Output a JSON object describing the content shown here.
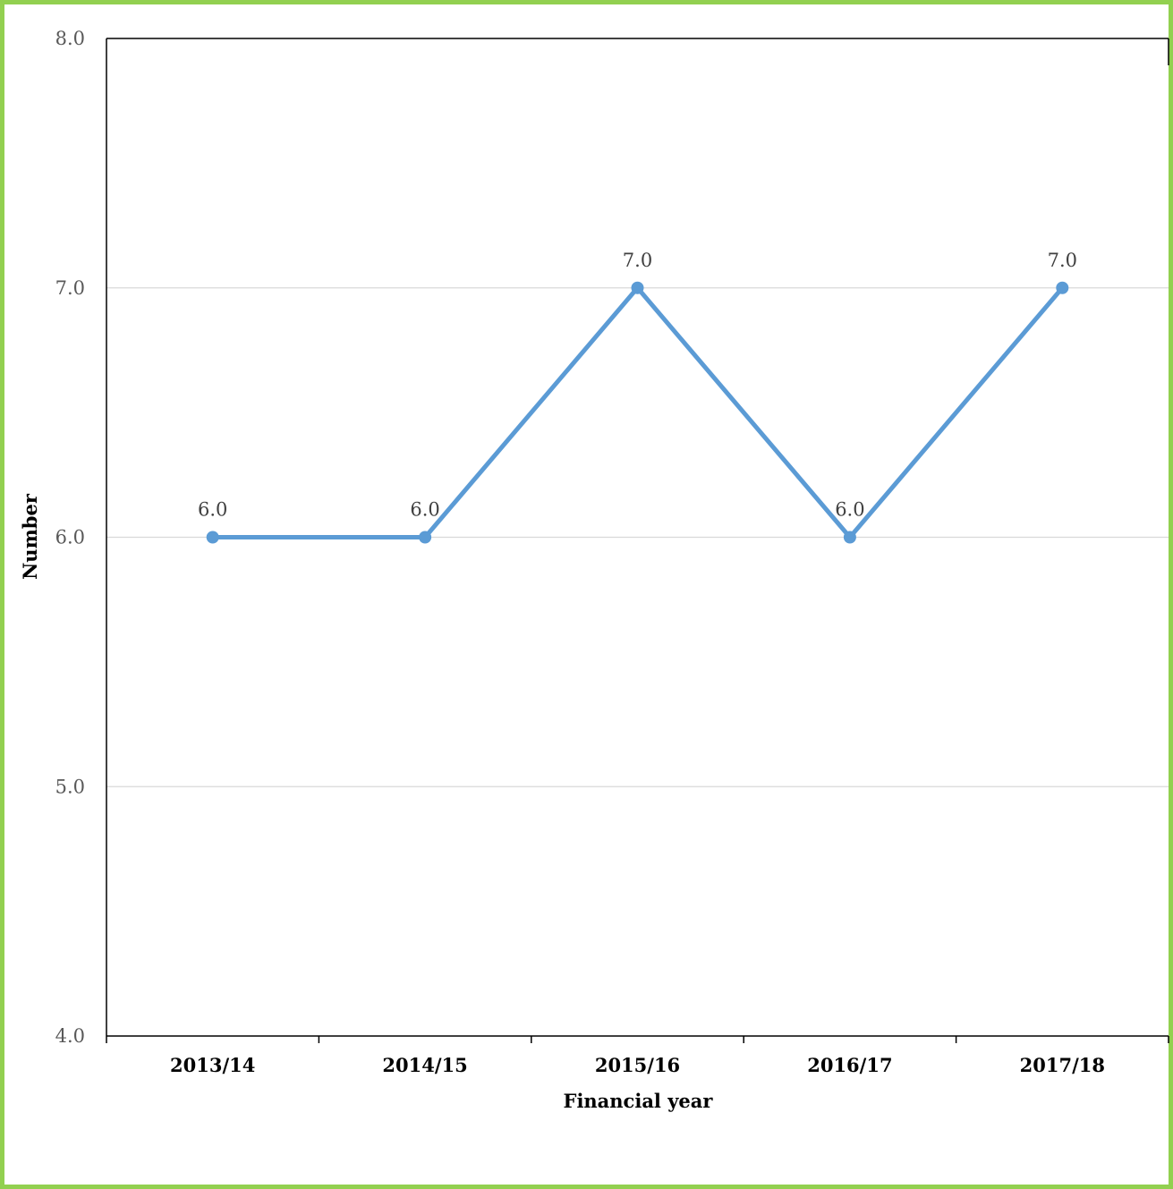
{
  "chart_data": {
    "type": "line",
    "title": "",
    "xlabel": "Financial year",
    "ylabel": "Number",
    "categories": [
      "2013/14",
      "2014/15",
      "2015/16",
      "2016/17",
      "2017/18"
    ],
    "series": [
      {
        "values": [
          6.0,
          6.0,
          7.0,
          6.0,
          7.0
        ],
        "data_labels": [
          "6.0",
          "6.0",
          "7.0",
          "6.0",
          "7.0"
        ],
        "color": "#5b9bd5"
      }
    ],
    "ylim": [
      4.0,
      8.0
    ],
    "yticks": [
      4.0,
      5.0,
      6.0,
      7.0,
      8.0
    ],
    "ytick_labels": [
      "4.0",
      "5.0",
      "6.0",
      "7.0",
      "8.0"
    ],
    "grid": true,
    "legend": "none",
    "colors": {
      "frame_border": "#92d050",
      "gridline": "#d9d9d9",
      "axis": "#000000"
    }
  }
}
